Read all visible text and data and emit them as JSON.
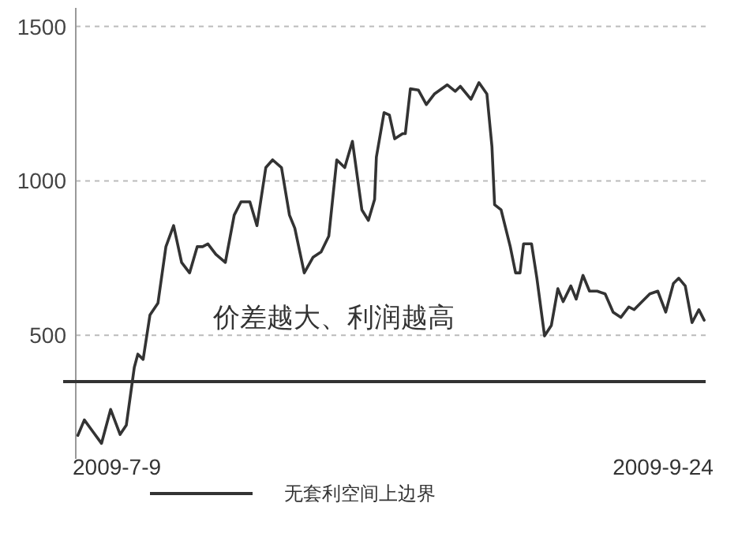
{
  "chart_data": {
    "type": "line",
    "xlim": [
      "2009-07-03T05:00",
      "2009-09-30"
    ],
    "xticks": [
      {
        "value": "2009-07-09",
        "label": "2009-7-9"
      },
      {
        "value": "2009-09-24",
        "label": "2009-9-24"
      }
    ],
    "series": [
      {
        "color": "#333333",
        "x": [
          "2009-07-03T12:00",
          "2009-07-04T10:00",
          "2009-07-05T12:00",
          "2009-07-06T20:00",
          "2009-07-08T03:00",
          "2009-07-09T11:00",
          "2009-07-10T08:00",
          "2009-07-11T11:00",
          "2009-07-11T23:00",
          "2009-07-12T17:00",
          "2009-07-13T16:00",
          "2009-07-14T19:00",
          "2009-07-15T22:00",
          "2009-07-17T00:00",
          "2009-07-18T03:00",
          "2009-07-19T06:00",
          "2009-07-20T08:00",
          "2009-07-21T02:00",
          "2009-07-21T20:00",
          "2009-07-22T23:00",
          "2009-07-24T07:00",
          "2009-07-25T13:00",
          "2009-07-26T12:00",
          "2009-07-27T18:00",
          "2009-07-28T18:00",
          "2009-07-30T00:00",
          "2009-07-30T23:00",
          "2009-08-01T05:00",
          "2009-08-02T08:00",
          "2009-08-03T02:00",
          "2009-08-04T10:00",
          "2009-08-05T16:00",
          "2009-08-06T19:00",
          "2009-08-07T21:00",
          "2009-08-09T00:00",
          "2009-08-10T03:00",
          "2009-08-11T05:00",
          "2009-08-12T13:00",
          "2009-08-13T11:00",
          "2009-08-14T08:00",
          "2009-08-14T14:00",
          "2009-08-15T16:00",
          "2009-08-16T10:00",
          "2009-08-17T04:00",
          "2009-08-18T07:00",
          "2009-08-18T16:00",
          "2009-08-19T09:00",
          "2009-08-20T12:00",
          "2009-08-21T15:00",
          "2009-08-22T18:00",
          "2009-08-24T14:00",
          "2009-08-25T17:00",
          "2009-08-26T10:00",
          "2009-08-27T22:00",
          "2009-08-29T01:00",
          "2009-08-30T04:00",
          "2009-08-30T21:00",
          "2009-08-31T06:00",
          "2009-09-01T04:00",
          "2009-09-02T11:00",
          "2009-09-03T05:00",
          "2009-09-03T20:00",
          "2009-09-04T08:00",
          "2009-09-05T11:00",
          "2009-09-06T05:00",
          "2009-09-07T07:00",
          "2009-09-08T06:00",
          "2009-09-09T04:00",
          "2009-09-09T22:00",
          "2009-09-11T00:00",
          "2009-09-11T18:00",
          "2009-09-12T17:00",
          "2009-09-13T15:00",
          "2009-09-14T17:00",
          "2009-09-15T20:00",
          "2009-09-16T23:00",
          "2009-09-18T01:00",
          "2009-09-19T04:00",
          "2009-09-19T22:00",
          "2009-09-21T01:00",
          "2009-09-22T03:00",
          "2009-09-23T06:00",
          "2009-09-24T09:00",
          "2009-09-25T11:00",
          "2009-09-26T05:00",
          "2009-09-27T03:00",
          "2009-09-28T02:00",
          "2009-09-29T01:00",
          "2009-09-29T19:00"
        ],
        "values": [
          176,
          226,
          192,
          150,
          260,
          179,
          209,
          396,
          439,
          422,
          566,
          604,
          787,
          855,
          736,
          702,
          787,
          787,
          796,
          762,
          736,
          889,
          932,
          932,
          855,
          1043,
          1068,
          1043,
          889,
          847,
          702,
          753,
          770,
          821,
          1068,
          1043,
          1128,
          906,
          872,
          940,
          1077,
          1221,
          1213,
          1136,
          1153,
          1153,
          1298,
          1294,
          1247,
          1281,
          1311,
          1290,
          1306,
          1264,
          1318,
          1281,
          1111,
          923,
          906,
          787,
          702,
          702,
          796,
          796,
          685,
          498,
          532,
          651,
          609,
          660,
          617,
          694,
          643,
          643,
          634,
          575,
          558,
          592,
          583,
          609,
          634,
          643,
          575,
          668,
          685,
          660,
          541,
          583,
          549
        ]
      }
    ],
    "ylim": [
      100,
      1560
    ],
    "yticks": [
      500,
      1000,
      1500
    ],
    "grid": "y",
    "line_style": "solid",
    "marker": "none",
    "ref_lines": [
      {
        "axis": "y",
        "value": 350,
        "label": "无套利空间上边界",
        "color": "#333333",
        "line_style": "solid"
      }
    ],
    "legend": "bottom",
    "annotations": [
      "价差越大、利润越高"
    ]
  }
}
